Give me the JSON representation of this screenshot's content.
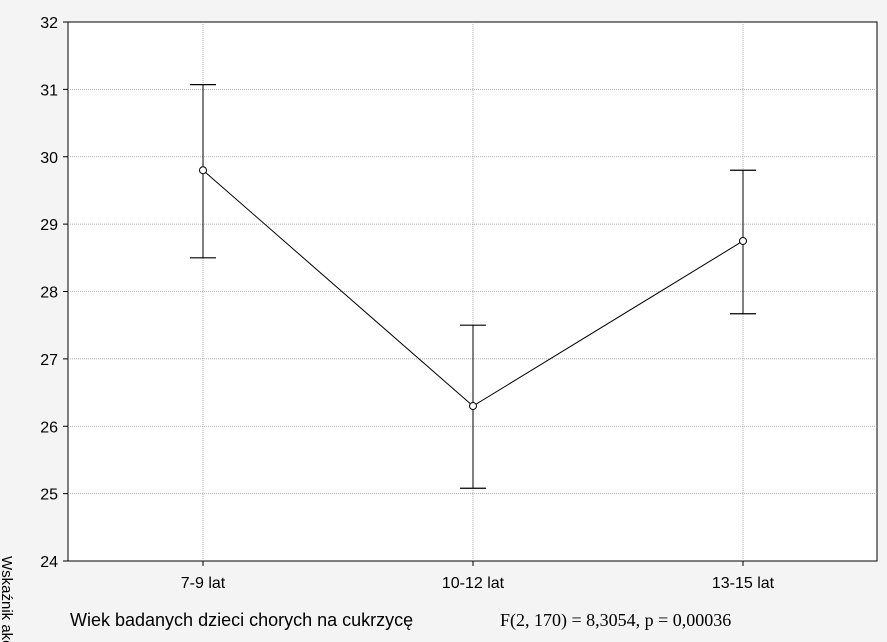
{
  "chart_data": {
    "type": "line",
    "title": "",
    "xlabel": "Wiek badanych dzieci chorych na cukrzycę",
    "ylabel": "Wskaźnik akcep",
    "annotation": "F(2, 170) = 8,3054, p = 0,00036",
    "categories": [
      "7-9 lat",
      "10-12 lat",
      "13-15 lat"
    ],
    "ylim": [
      24,
      32
    ],
    "yticks": [
      24,
      25,
      26,
      27,
      28,
      29,
      30,
      31,
      32
    ],
    "series": [
      {
        "values": [
          29.8,
          26.3,
          28.75
        ],
        "error_lower": [
          28.5,
          25.08,
          27.67
        ],
        "error_upper": [
          31.07,
          27.5,
          29.8
        ]
      }
    ],
    "grid": true,
    "colors": {
      "line": "#000000",
      "grid": "#9a9a9a",
      "plot_bg": "#ffffff",
      "page_bg": "#f4f4f4"
    }
  }
}
